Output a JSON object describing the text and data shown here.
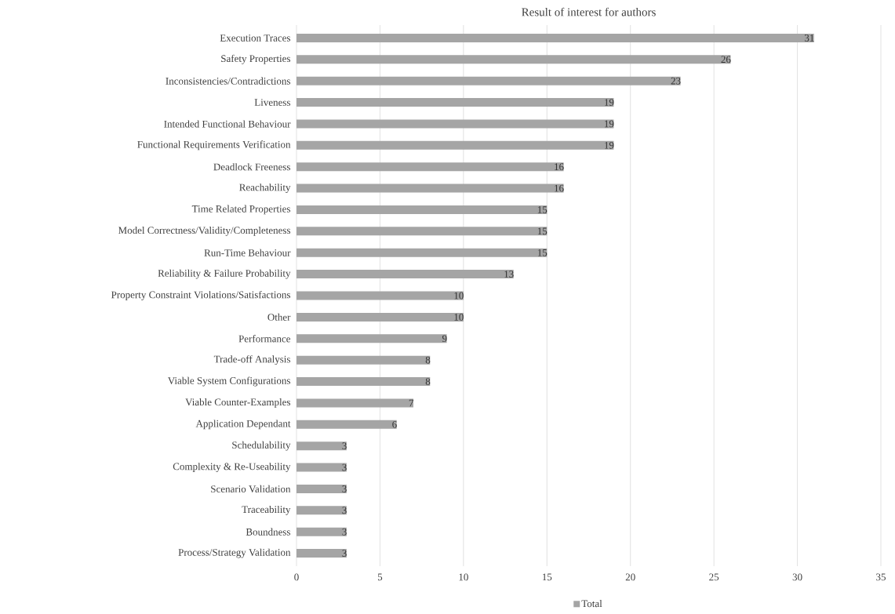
{
  "chart_data": {
    "type": "bar",
    "orientation": "horizontal",
    "title": "Result of interest for authors",
    "categories": [
      "Execution Traces",
      "Safety Properties",
      "Inconsistencies/Contradictions",
      "Liveness",
      "Intended Functional Behaviour",
      "Functional Requirements Verification",
      "Deadlock Freeness",
      "Reachability",
      "Time Related Properties",
      "Model Correctness/Validity/Completeness",
      "Run-Time Behaviour",
      "Reliability & Failure Probability",
      "Property Constraint Violations/Satisfactions",
      "Other",
      "Performance",
      "Trade-off Analysis",
      "Viable System Configurations",
      "Viable Counter-Examples",
      "Application Dependant",
      "Schedulability",
      "Complexity & Re-Useability",
      "Scenario Validation",
      "Traceability",
      "Boundness",
      "Process/Strategy Validation"
    ],
    "series": [
      {
        "name": "Total",
        "color": "#a5a5a5",
        "values": [
          31,
          26,
          23,
          19,
          19,
          19,
          16,
          16,
          15,
          15,
          15,
          13,
          10,
          10,
          9,
          8,
          8,
          7,
          6,
          3,
          3,
          3,
          3,
          3,
          3
        ]
      }
    ],
    "xlim": [
      0,
      35
    ],
    "xticks": [
      0,
      5,
      10,
      15,
      20,
      25,
      30,
      35
    ],
    "grid": "x",
    "legend": "bottom",
    "data_labels": true
  }
}
